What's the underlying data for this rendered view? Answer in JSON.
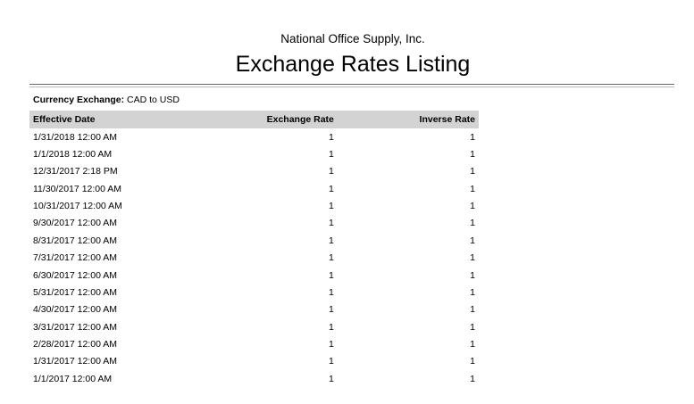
{
  "header": {
    "company": "National Office Supply, Inc.",
    "title": "Exchange Rates Listing"
  },
  "currency": {
    "label": "Currency Exchange:",
    "value": "CAD to USD"
  },
  "table": {
    "columns": [
      "Effective Date",
      "Exchange Rate",
      "Inverse Rate"
    ],
    "rows": [
      [
        "1/31/2018 12:00 AM",
        "1",
        "1"
      ],
      [
        "1/1/2018 12:00 AM",
        "1",
        "1"
      ],
      [
        "12/31/2017 2:18 PM",
        "1",
        "1"
      ],
      [
        "11/30/2017 12:00 AM",
        "1",
        "1"
      ],
      [
        "10/31/2017 12:00 AM",
        "1",
        "1"
      ],
      [
        "9/30/2017 12:00 AM",
        "1",
        "1"
      ],
      [
        "8/31/2017 12:00 AM",
        "1",
        "1"
      ],
      [
        "7/31/2017 12:00 AM",
        "1",
        "1"
      ],
      [
        "6/30/2017 12:00 AM",
        "1",
        "1"
      ],
      [
        "5/31/2017 12:00 AM",
        "1",
        "1"
      ],
      [
        "4/30/2017 12:00 AM",
        "1",
        "1"
      ],
      [
        "3/31/2017 12:00 AM",
        "1",
        "1"
      ],
      [
        "2/28/2017 12:00 AM",
        "1",
        "1"
      ],
      [
        "1/31/2017 12:00 AM",
        "1",
        "1"
      ],
      [
        "1/1/2017 12:00 AM",
        "1",
        "1"
      ]
    ]
  }
}
